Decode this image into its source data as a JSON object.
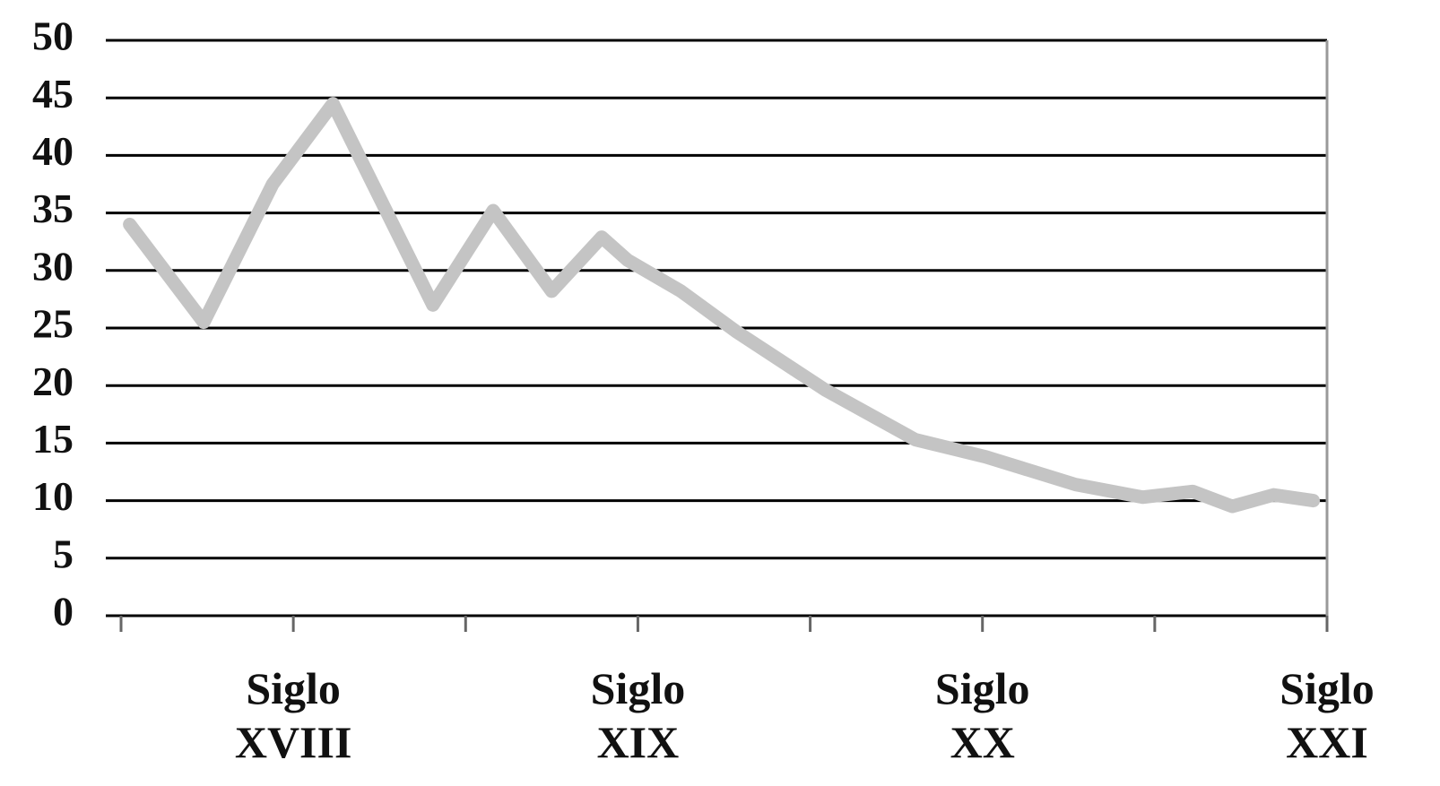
{
  "chart_data": {
    "type": "line",
    "x": [
      0.05,
      0.48,
      0.88,
      1.23,
      1.81,
      2.16,
      2.5,
      2.79,
      2.94,
      3.25,
      3.57,
      4.09,
      4.61,
      5.02,
      5.54,
      5.93,
      6.22,
      6.45,
      6.69,
      6.92
    ],
    "series": [
      {
        "color": "#c4c4c4",
        "values": [
          34,
          25.5,
          37.5,
          44.5,
          27,
          35.2,
          28.2,
          32.9,
          30.9,
          28.2,
          24.7,
          19.6,
          15.3,
          13.8,
          11.4,
          10.3,
          10.8,
          9.5,
          10.5,
          10
        ]
      }
    ],
    "xlim": [
      0,
      7
    ],
    "xticks": [
      {
        "value": 0,
        "label": null
      },
      {
        "value": 1,
        "label": "Siglo XVIII"
      },
      {
        "value": 2,
        "label": null
      },
      {
        "value": 3,
        "label": "Siglo XIX"
      },
      {
        "value": 4,
        "label": null
      },
      {
        "value": 5,
        "label": "Siglo XX"
      },
      {
        "value": 6,
        "label": null
      },
      {
        "value": 7,
        "label": "Siglo XXI"
      }
    ],
    "ylim": [
      0,
      50
    ],
    "yticks": [
      0,
      5,
      10,
      15,
      20,
      25,
      30,
      35,
      40,
      45,
      50
    ],
    "grid": true
  }
}
